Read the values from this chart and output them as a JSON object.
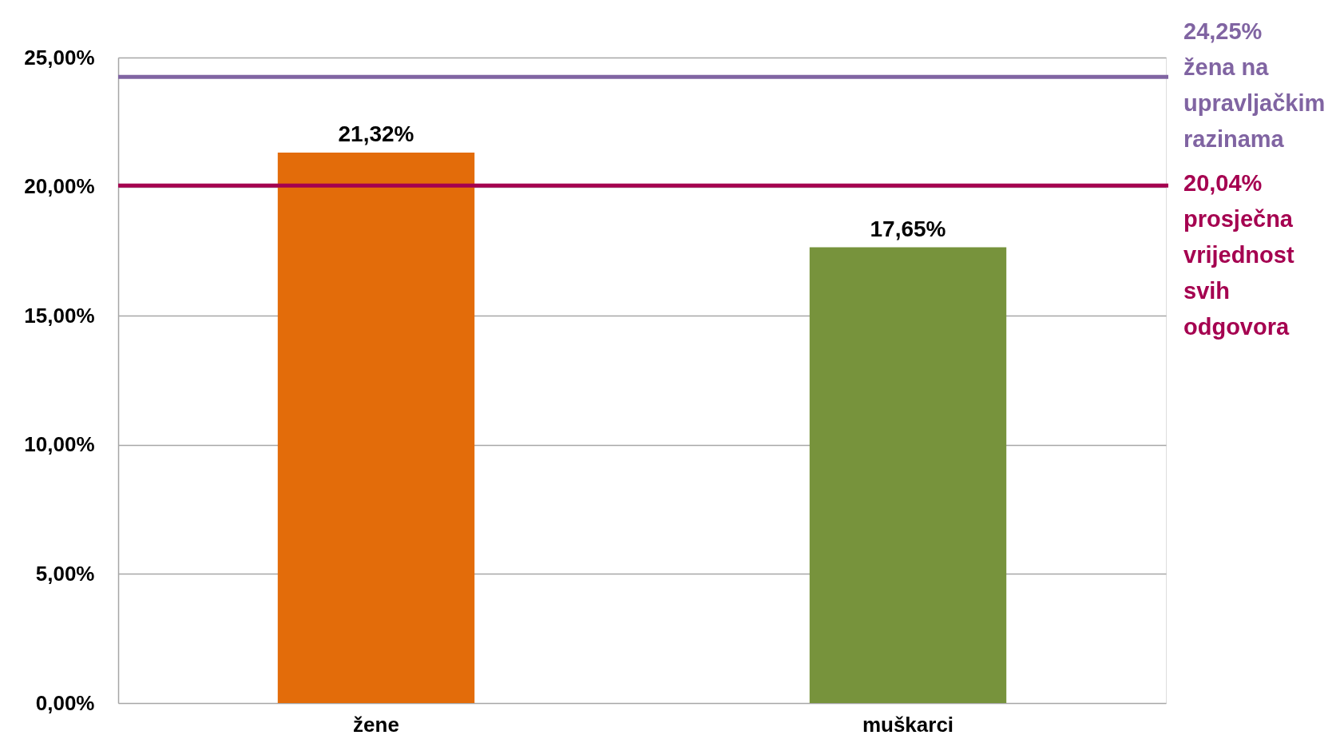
{
  "chart_data": {
    "type": "bar",
    "categories": [
      "žene",
      "muškarci"
    ],
    "values": [
      21.32,
      17.65
    ],
    "colors": [
      "#e36c0a",
      "#77933c"
    ],
    "value_labels": [
      "21,32%",
      "17,65%"
    ],
    "ylim": [
      0,
      25
    ],
    "yticks": [
      {
        "value": 0,
        "label": "0,00%"
      },
      {
        "value": 5,
        "label": "5,00%"
      },
      {
        "value": 10,
        "label": "10,00%"
      },
      {
        "value": 15,
        "label": "15,00%"
      },
      {
        "value": 20,
        "label": "20,00%"
      },
      {
        "value": 25,
        "label": "25,00%"
      }
    ],
    "grid": "y",
    "ref_lines": [
      {
        "axis": "y",
        "value": 24.25,
        "label": "24,25% žena na upravljačkim razinama",
        "color": "#8064a2"
      },
      {
        "axis": "y",
        "value": 20.04,
        "label": "20,04% prosječna vrijednost svih odgovora",
        "color": "#a50050"
      }
    ]
  }
}
